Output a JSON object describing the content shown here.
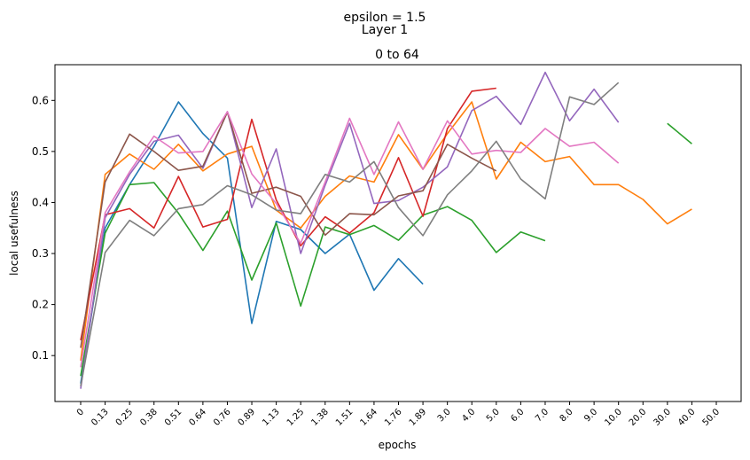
{
  "figure": {
    "suptitle_line1": "epsilon = 1.5",
    "suptitle_line2": "Layer 1"
  },
  "chart_data": {
    "type": "line",
    "title": "0 to 64",
    "xlabel": "epochs",
    "ylabel": "local usefulness",
    "categories": [
      "0",
      "0.13",
      "0.25",
      "0.38",
      "0.51",
      "0.64",
      "0.76",
      "0.89",
      "1.13",
      "1.25",
      "1.38",
      "1.51",
      "1.64",
      "1.76",
      "1.89",
      "3.0",
      "4.0",
      "5.0",
      "6.0",
      "7.0",
      "8.0",
      "9.0",
      "10.0",
      "20.0",
      "30.0",
      "40.0",
      "50.0"
    ],
    "yticks": [
      0.1,
      0.2,
      0.3,
      0.4,
      0.5,
      0.6
    ],
    "ylim": [
      0.01,
      0.67
    ],
    "grid": false,
    "legend": "none",
    "series": [
      {
        "color": "#1f77b4",
        "values": [
          0.045,
          0.35,
          0.435,
          0.51,
          0.597,
          0.535,
          0.487,
          0.163,
          0.363,
          0.347,
          0.3,
          0.338,
          0.228,
          0.29,
          0.24,
          null,
          null,
          null,
          null,
          null,
          null,
          null,
          null,
          null,
          null,
          null,
          null
        ]
      },
      {
        "color": "#ff7f0e",
        "values": [
          0.09,
          0.455,
          0.495,
          0.465,
          0.514,
          0.462,
          0.495,
          0.51,
          0.385,
          0.35,
          0.412,
          0.452,
          0.44,
          0.533,
          0.465,
          0.535,
          0.597,
          0.446,
          0.518,
          0.48,
          0.49,
          0.435,
          0.435,
          0.406,
          0.358,
          0.387,
          null
        ]
      },
      {
        "color": "#2ca02c",
        "values": [
          0.06,
          0.34,
          0.435,
          0.439,
          0.379,
          0.306,
          0.383,
          0.248,
          0.36,
          0.197,
          0.352,
          0.337,
          0.355,
          0.326,
          0.375,
          0.392,
          0.365,
          0.302,
          0.342,
          0.325,
          null,
          null,
          null,
          null,
          0.555,
          0.515,
          null
        ]
      },
      {
        "color": "#d62728",
        "values": [
          0.13,
          0.376,
          0.388,
          0.35,
          0.451,
          0.352,
          0.367,
          0.563,
          0.405,
          0.315,
          0.372,
          0.34,
          0.38,
          0.488,
          0.373,
          0.545,
          0.618,
          0.624,
          null,
          null,
          null,
          null,
          null,
          null,
          null,
          null,
          null
        ]
      },
      {
        "color": "#9467bd",
        "values": [
          0.035,
          0.37,
          0.455,
          0.52,
          0.532,
          0.467,
          0.578,
          0.39,
          0.505,
          0.3,
          0.434,
          0.555,
          0.398,
          0.404,
          0.43,
          0.47,
          0.58,
          0.608,
          0.553,
          0.655,
          0.56,
          0.622,
          0.557,
          null,
          null,
          null,
          null
        ]
      },
      {
        "color": "#8c564b",
        "values": [
          0.115,
          0.44,
          0.534,
          0.5,
          0.463,
          0.471,
          0.577,
          0.418,
          0.43,
          0.412,
          0.336,
          0.378,
          0.376,
          0.413,
          0.423,
          0.514,
          0.487,
          0.462,
          null,
          null,
          null,
          null,
          null,
          null,
          null,
          null,
          null
        ]
      },
      {
        "color": "#e377c2",
        "values": [
          0.077,
          0.38,
          0.46,
          0.53,
          0.497,
          0.5,
          0.578,
          0.456,
          0.398,
          0.32,
          0.44,
          0.565,
          0.455,
          0.558,
          0.465,
          0.56,
          0.495,
          0.502,
          0.498,
          0.545,
          0.51,
          0.518,
          0.477,
          null,
          null,
          null,
          null
        ]
      },
      {
        "color": "#7f7f7f",
        "values": [
          0.04,
          0.302,
          0.365,
          0.335,
          0.388,
          0.396,
          0.433,
          0.415,
          0.385,
          0.378,
          0.455,
          0.44,
          0.48,
          0.39,
          0.335,
          0.415,
          0.462,
          0.52,
          0.446,
          0.407,
          0.607,
          0.592,
          0.635,
          null,
          null,
          null,
          null
        ]
      }
    ]
  }
}
